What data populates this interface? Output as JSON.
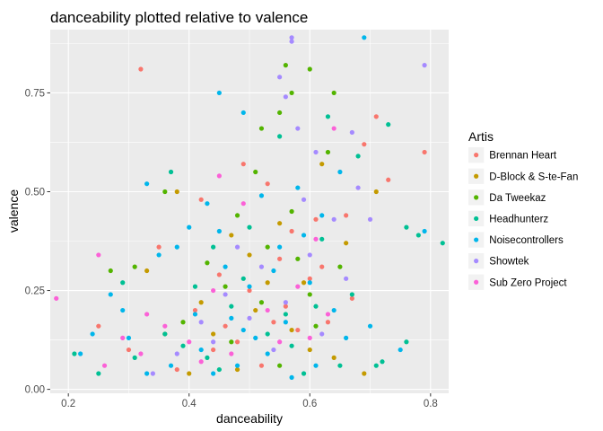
{
  "chart_data": {
    "type": "scatter",
    "title": "danceability plotted relative to valence",
    "xlabel": "danceability",
    "ylabel": "valence",
    "xlim": [
      0.17,
      0.83
    ],
    "ylim": [
      -0.01,
      0.91
    ],
    "x_ticks": [
      0.2,
      0.4,
      0.6,
      0.8
    ],
    "x_tick_labels": [
      "0.2",
      "0.4",
      "0.6",
      "0.8"
    ],
    "y_ticks": [
      0.0,
      0.25,
      0.5,
      0.75
    ],
    "y_tick_labels": [
      "0.00",
      "0.25",
      "0.50",
      "0.75"
    ],
    "grid": true,
    "panel_background": "#ebebeb",
    "legend": {
      "title": "Artis",
      "position": "right"
    },
    "series": [
      {
        "name": "Brennan Heart",
        "color": "#f8766d",
        "points": [
          [
            0.32,
            0.81
          ],
          [
            0.71,
            0.69
          ],
          [
            0.79,
            0.6
          ],
          [
            0.49,
            0.57
          ],
          [
            0.69,
            0.62
          ],
          [
            0.42,
            0.48
          ],
          [
            0.53,
            0.52
          ],
          [
            0.66,
            0.44
          ],
          [
            0.61,
            0.43
          ],
          [
            0.73,
            0.53
          ],
          [
            0.35,
            0.36
          ],
          [
            0.45,
            0.29
          ],
          [
            0.5,
            0.25
          ],
          [
            0.55,
            0.33
          ],
          [
            0.58,
            0.15
          ],
          [
            0.63,
            0.17
          ],
          [
            0.41,
            0.2
          ],
          [
            0.3,
            0.1
          ],
          [
            0.25,
            0.16
          ],
          [
            0.48,
            0.12
          ],
          [
            0.52,
            0.06
          ],
          [
            0.56,
            0.21
          ],
          [
            0.6,
            0.28
          ],
          [
            0.67,
            0.23
          ],
          [
            0.38,
            0.05
          ],
          [
            0.44,
            0.1
          ],
          [
            0.57,
            0.4
          ],
          [
            0.62,
            0.31
          ],
          [
            0.54,
            0.17
          ],
          [
            0.46,
            0.16
          ]
        ]
      },
      {
        "name": "D-Block & S-te-Fan",
        "color": "#c49a00",
        "points": [
          [
            0.62,
            0.57
          ],
          [
            0.38,
            0.5
          ],
          [
            0.71,
            0.5
          ],
          [
            0.33,
            0.3
          ],
          [
            0.47,
            0.39
          ],
          [
            0.55,
            0.42
          ],
          [
            0.59,
            0.27
          ],
          [
            0.44,
            0.14
          ],
          [
            0.51,
            0.2
          ],
          [
            0.69,
            0.04
          ],
          [
            0.4,
            0.04
          ],
          [
            0.57,
            0.15
          ],
          [
            0.66,
            0.37
          ],
          [
            0.5,
            0.34
          ],
          [
            0.42,
            0.22
          ],
          [
            0.36,
            0.14
          ],
          [
            0.6,
            0.1
          ],
          [
            0.64,
            0.08
          ],
          [
            0.53,
            0.27
          ],
          [
            0.48,
            0.05
          ]
        ]
      },
      {
        "name": "Da Tweekaz",
        "color": "#53b400",
        "points": [
          [
            0.56,
            0.82
          ],
          [
            0.6,
            0.81
          ],
          [
            0.57,
            0.75
          ],
          [
            0.64,
            0.75
          ],
          [
            0.55,
            0.7
          ],
          [
            0.52,
            0.66
          ],
          [
            0.63,
            0.6
          ],
          [
            0.51,
            0.55
          ],
          [
            0.57,
            0.45
          ],
          [
            0.48,
            0.44
          ],
          [
            0.36,
            0.5
          ],
          [
            0.27,
            0.3
          ],
          [
            0.31,
            0.31
          ],
          [
            0.43,
            0.32
          ],
          [
            0.58,
            0.33
          ],
          [
            0.6,
            0.24
          ],
          [
            0.52,
            0.22
          ],
          [
            0.47,
            0.12
          ],
          [
            0.55,
            0.06
          ],
          [
            0.61,
            0.16
          ],
          [
            0.65,
            0.31
          ],
          [
            0.39,
            0.17
          ],
          [
            0.53,
            0.36
          ],
          [
            0.46,
            0.26
          ]
        ]
      },
      {
        "name": "Headhunterz",
        "color": "#00c094",
        "points": [
          [
            0.73,
            0.67
          ],
          [
            0.68,
            0.59
          ],
          [
            0.63,
            0.69
          ],
          [
            0.37,
            0.55
          ],
          [
            0.76,
            0.41
          ],
          [
            0.82,
            0.37
          ],
          [
            0.78,
            0.39
          ],
          [
            0.29,
            0.27
          ],
          [
            0.55,
            0.64
          ],
          [
            0.5,
            0.41
          ],
          [
            0.44,
            0.36
          ],
          [
            0.41,
            0.26
          ],
          [
            0.61,
            0.21
          ],
          [
            0.57,
            0.11
          ],
          [
            0.65,
            0.06
          ],
          [
            0.71,
            0.06
          ],
          [
            0.76,
            0.12
          ],
          [
            0.72,
            0.07
          ],
          [
            0.36,
            0.14
          ],
          [
            0.31,
            0.08
          ],
          [
            0.25,
            0.04
          ],
          [
            0.21,
            0.09
          ],
          [
            0.47,
            0.21
          ],
          [
            0.53,
            0.14
          ],
          [
            0.59,
            0.04
          ],
          [
            0.45,
            0.05
          ],
          [
            0.39,
            0.11
          ],
          [
            0.67,
            0.24
          ],
          [
            0.62,
            0.38
          ],
          [
            0.49,
            0.28
          ],
          [
            0.56,
            0.19
          ],
          [
            0.43,
            0.08
          ]
        ]
      },
      {
        "name": "Noisecontrollers",
        "color": "#00b6eb",
        "points": [
          [
            0.69,
            0.89
          ],
          [
            0.45,
            0.75
          ],
          [
            0.49,
            0.7
          ],
          [
            0.33,
            0.52
          ],
          [
            0.4,
            0.41
          ],
          [
            0.38,
            0.36
          ],
          [
            0.35,
            0.34
          ],
          [
            0.27,
            0.24
          ],
          [
            0.29,
            0.2
          ],
          [
            0.24,
            0.14
          ],
          [
            0.22,
            0.09
          ],
          [
            0.45,
            0.4
          ],
          [
            0.52,
            0.49
          ],
          [
            0.58,
            0.51
          ],
          [
            0.55,
            0.36
          ],
          [
            0.5,
            0.26
          ],
          [
            0.47,
            0.18
          ],
          [
            0.42,
            0.1
          ],
          [
            0.44,
            0.04
          ],
          [
            0.48,
            0.06
          ],
          [
            0.53,
            0.09
          ],
          [
            0.57,
            0.03
          ],
          [
            0.61,
            0.06
          ],
          [
            0.66,
            0.13
          ],
          [
            0.7,
            0.16
          ],
          [
            0.75,
            0.1
          ],
          [
            0.79,
            0.4
          ],
          [
            0.62,
            0.44
          ],
          [
            0.65,
            0.55
          ],
          [
            0.6,
            0.27
          ],
          [
            0.56,
            0.17
          ],
          [
            0.51,
            0.13
          ],
          [
            0.46,
            0.31
          ],
          [
            0.41,
            0.19
          ],
          [
            0.37,
            0.06
          ],
          [
            0.33,
            0.04
          ],
          [
            0.3,
            0.13
          ],
          [
            0.54,
            0.3
          ],
          [
            0.59,
            0.39
          ],
          [
            0.43,
            0.47
          ],
          [
            0.64,
            0.2
          ],
          [
            0.49,
            0.15
          ]
        ]
      },
      {
        "name": "Showtek",
        "color": "#a58aff",
        "points": [
          [
            0.57,
            0.89
          ],
          [
            0.57,
            0.88
          ],
          [
            0.79,
            0.82
          ],
          [
            0.55,
            0.79
          ],
          [
            0.56,
            0.74
          ],
          [
            0.58,
            0.66
          ],
          [
            0.61,
            0.6
          ],
          [
            0.67,
            0.65
          ],
          [
            0.7,
            0.43
          ],
          [
            0.68,
            0.51
          ],
          [
            0.59,
            0.48
          ],
          [
            0.48,
            0.36
          ],
          [
            0.52,
            0.31
          ],
          [
            0.56,
            0.22
          ],
          [
            0.62,
            0.14
          ],
          [
            0.54,
            0.1
          ],
          [
            0.46,
            0.24
          ],
          [
            0.42,
            0.17
          ],
          [
            0.38,
            0.09
          ],
          [
            0.34,
            0.04
          ],
          [
            0.6,
            0.34
          ],
          [
            0.66,
            0.28
          ],
          [
            0.64,
            0.43
          ],
          [
            0.5,
            0.18
          ],
          [
            0.44,
            0.12
          ]
        ]
      },
      {
        "name": "Sub Zero Project",
        "color": "#fb61d7",
        "points": [
          [
            0.18,
            0.23
          ],
          [
            0.25,
            0.34
          ],
          [
            0.26,
            0.06
          ],
          [
            0.29,
            0.13
          ],
          [
            0.32,
            0.09
          ],
          [
            0.36,
            0.16
          ],
          [
            0.4,
            0.12
          ],
          [
            0.44,
            0.25
          ],
          [
            0.45,
            0.54
          ],
          [
            0.49,
            0.47
          ],
          [
            0.53,
            0.2
          ],
          [
            0.58,
            0.26
          ],
          [
            0.6,
            0.13
          ],
          [
            0.64,
            0.66
          ],
          [
            0.63,
            0.19
          ],
          [
            0.42,
            0.07
          ],
          [
            0.47,
            0.09
          ],
          [
            0.55,
            0.12
          ],
          [
            0.61,
            0.38
          ],
          [
            0.33,
            0.19
          ]
        ]
      }
    ]
  }
}
